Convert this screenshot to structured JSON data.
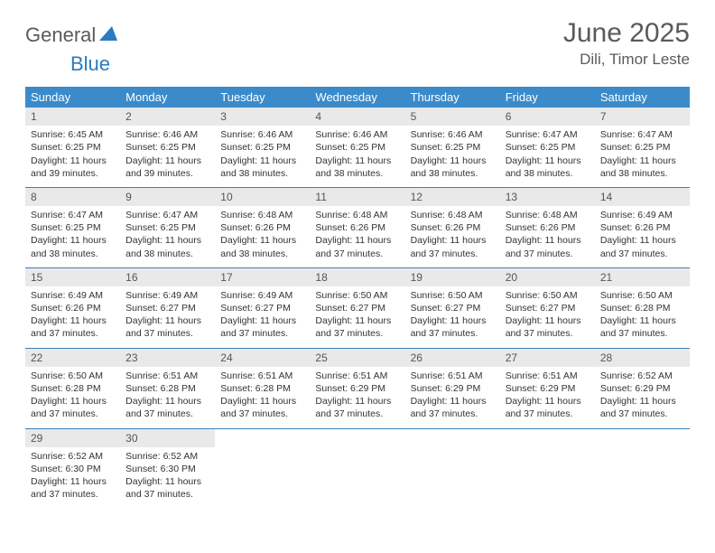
{
  "logo": {
    "word1": "General",
    "word2": "Blue"
  },
  "title": "June 2025",
  "location": "Dili, Timor Leste",
  "colors": {
    "header_bg": "#3b8bca",
    "header_text": "#ffffff",
    "rule": "#3b7fb5",
    "daynum_bg": "#e9e9e9",
    "text": "#333333",
    "title_text": "#5a5a5a",
    "logo_blue": "#2b7bbf"
  },
  "weekdays": [
    "Sunday",
    "Monday",
    "Tuesday",
    "Wednesday",
    "Thursday",
    "Friday",
    "Saturday"
  ],
  "weeks": [
    [
      {
        "n": "1",
        "sr": "Sunrise: 6:45 AM",
        "ss": "Sunset: 6:25 PM",
        "d1": "Daylight: 11 hours",
        "d2": "and 39 minutes."
      },
      {
        "n": "2",
        "sr": "Sunrise: 6:46 AM",
        "ss": "Sunset: 6:25 PM",
        "d1": "Daylight: 11 hours",
        "d2": "and 39 minutes."
      },
      {
        "n": "3",
        "sr": "Sunrise: 6:46 AM",
        "ss": "Sunset: 6:25 PM",
        "d1": "Daylight: 11 hours",
        "d2": "and 38 minutes."
      },
      {
        "n": "4",
        "sr": "Sunrise: 6:46 AM",
        "ss": "Sunset: 6:25 PM",
        "d1": "Daylight: 11 hours",
        "d2": "and 38 minutes."
      },
      {
        "n": "5",
        "sr": "Sunrise: 6:46 AM",
        "ss": "Sunset: 6:25 PM",
        "d1": "Daylight: 11 hours",
        "d2": "and 38 minutes."
      },
      {
        "n": "6",
        "sr": "Sunrise: 6:47 AM",
        "ss": "Sunset: 6:25 PM",
        "d1": "Daylight: 11 hours",
        "d2": "and 38 minutes."
      },
      {
        "n": "7",
        "sr": "Sunrise: 6:47 AM",
        "ss": "Sunset: 6:25 PM",
        "d1": "Daylight: 11 hours",
        "d2": "and 38 minutes."
      }
    ],
    [
      {
        "n": "8",
        "sr": "Sunrise: 6:47 AM",
        "ss": "Sunset: 6:25 PM",
        "d1": "Daylight: 11 hours",
        "d2": "and 38 minutes."
      },
      {
        "n": "9",
        "sr": "Sunrise: 6:47 AM",
        "ss": "Sunset: 6:25 PM",
        "d1": "Daylight: 11 hours",
        "d2": "and 38 minutes."
      },
      {
        "n": "10",
        "sr": "Sunrise: 6:48 AM",
        "ss": "Sunset: 6:26 PM",
        "d1": "Daylight: 11 hours",
        "d2": "and 38 minutes."
      },
      {
        "n": "11",
        "sr": "Sunrise: 6:48 AM",
        "ss": "Sunset: 6:26 PM",
        "d1": "Daylight: 11 hours",
        "d2": "and 37 minutes."
      },
      {
        "n": "12",
        "sr": "Sunrise: 6:48 AM",
        "ss": "Sunset: 6:26 PM",
        "d1": "Daylight: 11 hours",
        "d2": "and 37 minutes."
      },
      {
        "n": "13",
        "sr": "Sunrise: 6:48 AM",
        "ss": "Sunset: 6:26 PM",
        "d1": "Daylight: 11 hours",
        "d2": "and 37 minutes."
      },
      {
        "n": "14",
        "sr": "Sunrise: 6:49 AM",
        "ss": "Sunset: 6:26 PM",
        "d1": "Daylight: 11 hours",
        "d2": "and 37 minutes."
      }
    ],
    [
      {
        "n": "15",
        "sr": "Sunrise: 6:49 AM",
        "ss": "Sunset: 6:26 PM",
        "d1": "Daylight: 11 hours",
        "d2": "and 37 minutes."
      },
      {
        "n": "16",
        "sr": "Sunrise: 6:49 AM",
        "ss": "Sunset: 6:27 PM",
        "d1": "Daylight: 11 hours",
        "d2": "and 37 minutes."
      },
      {
        "n": "17",
        "sr": "Sunrise: 6:49 AM",
        "ss": "Sunset: 6:27 PM",
        "d1": "Daylight: 11 hours",
        "d2": "and 37 minutes."
      },
      {
        "n": "18",
        "sr": "Sunrise: 6:50 AM",
        "ss": "Sunset: 6:27 PM",
        "d1": "Daylight: 11 hours",
        "d2": "and 37 minutes."
      },
      {
        "n": "19",
        "sr": "Sunrise: 6:50 AM",
        "ss": "Sunset: 6:27 PM",
        "d1": "Daylight: 11 hours",
        "d2": "and 37 minutes."
      },
      {
        "n": "20",
        "sr": "Sunrise: 6:50 AM",
        "ss": "Sunset: 6:27 PM",
        "d1": "Daylight: 11 hours",
        "d2": "and 37 minutes."
      },
      {
        "n": "21",
        "sr": "Sunrise: 6:50 AM",
        "ss": "Sunset: 6:28 PM",
        "d1": "Daylight: 11 hours",
        "d2": "and 37 minutes."
      }
    ],
    [
      {
        "n": "22",
        "sr": "Sunrise: 6:50 AM",
        "ss": "Sunset: 6:28 PM",
        "d1": "Daylight: 11 hours",
        "d2": "and 37 minutes."
      },
      {
        "n": "23",
        "sr": "Sunrise: 6:51 AM",
        "ss": "Sunset: 6:28 PM",
        "d1": "Daylight: 11 hours",
        "d2": "and 37 minutes."
      },
      {
        "n": "24",
        "sr": "Sunrise: 6:51 AM",
        "ss": "Sunset: 6:28 PM",
        "d1": "Daylight: 11 hours",
        "d2": "and 37 minutes."
      },
      {
        "n": "25",
        "sr": "Sunrise: 6:51 AM",
        "ss": "Sunset: 6:29 PM",
        "d1": "Daylight: 11 hours",
        "d2": "and 37 minutes."
      },
      {
        "n": "26",
        "sr": "Sunrise: 6:51 AM",
        "ss": "Sunset: 6:29 PM",
        "d1": "Daylight: 11 hours",
        "d2": "and 37 minutes."
      },
      {
        "n": "27",
        "sr": "Sunrise: 6:51 AM",
        "ss": "Sunset: 6:29 PM",
        "d1": "Daylight: 11 hours",
        "d2": "and 37 minutes."
      },
      {
        "n": "28",
        "sr": "Sunrise: 6:52 AM",
        "ss": "Sunset: 6:29 PM",
        "d1": "Daylight: 11 hours",
        "d2": "and 37 minutes."
      }
    ],
    [
      {
        "n": "29",
        "sr": "Sunrise: 6:52 AM",
        "ss": "Sunset: 6:30 PM",
        "d1": "Daylight: 11 hours",
        "d2": "and 37 minutes."
      },
      {
        "n": "30",
        "sr": "Sunrise: 6:52 AM",
        "ss": "Sunset: 6:30 PM",
        "d1": "Daylight: 11 hours",
        "d2": "and 37 minutes."
      },
      null,
      null,
      null,
      null,
      null
    ]
  ]
}
